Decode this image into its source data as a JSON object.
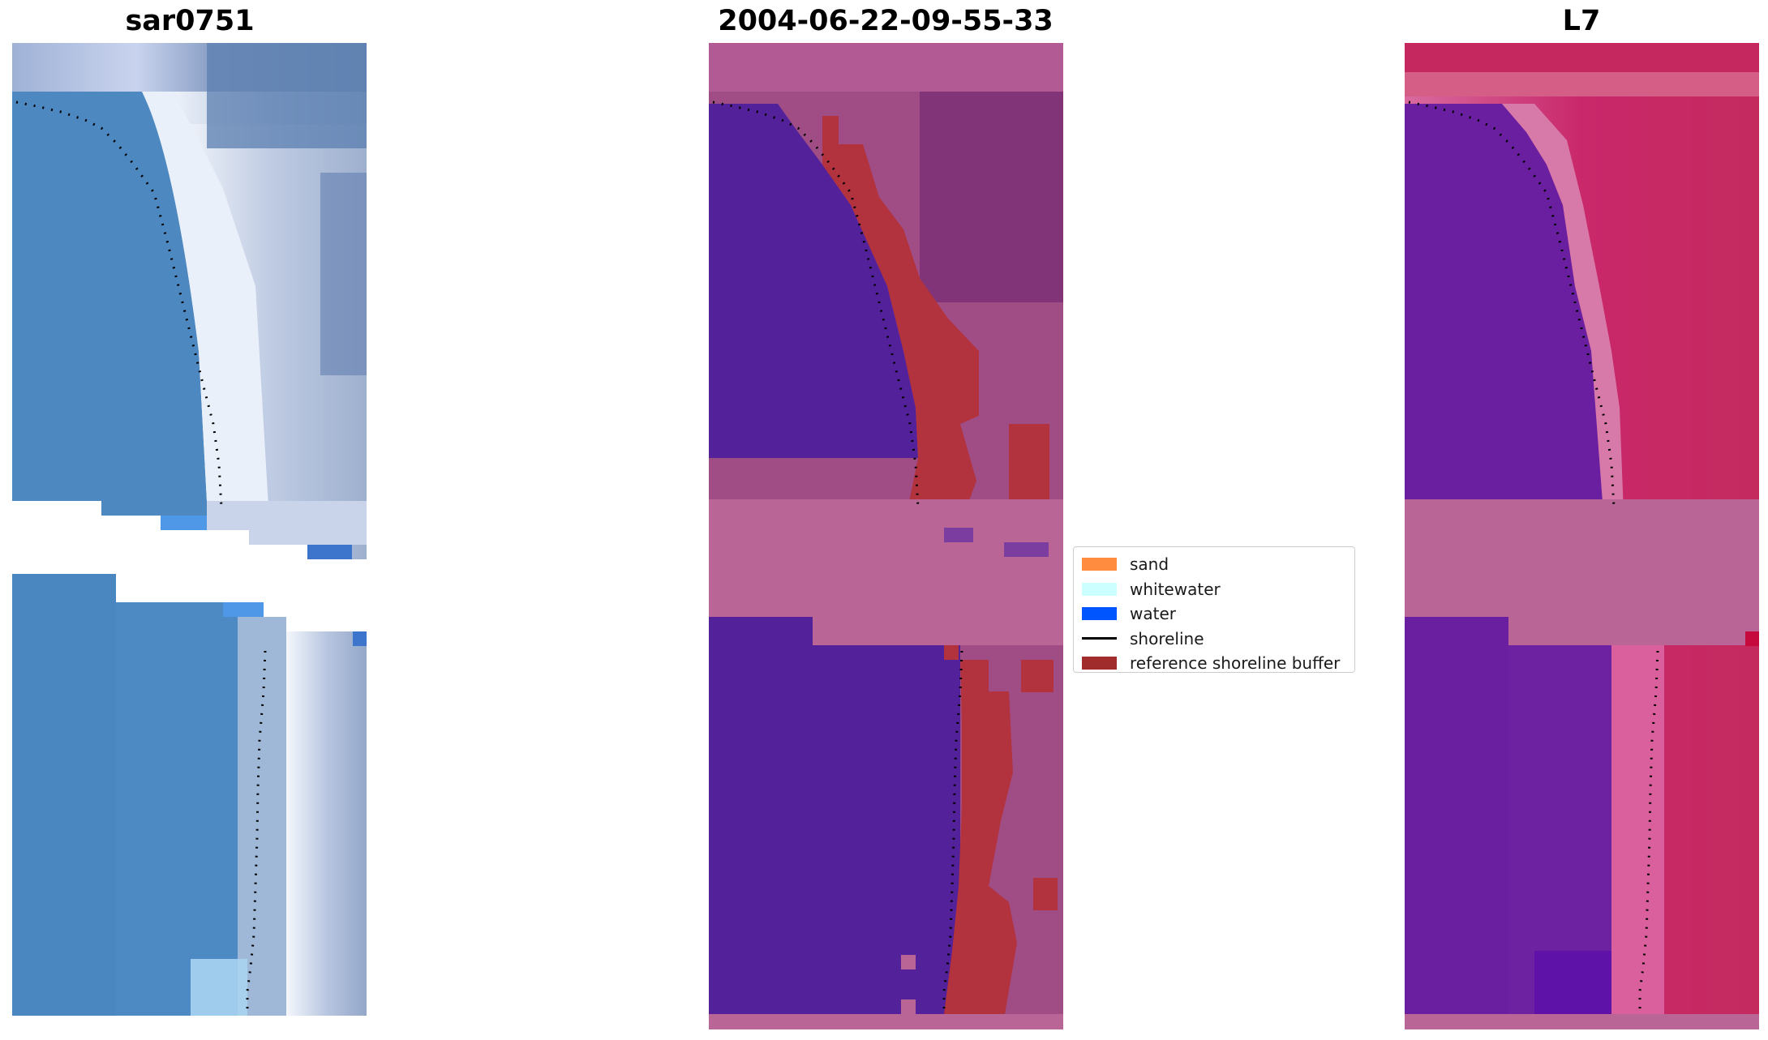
{
  "panels": {
    "left_title": "sar0751",
    "middle_title": "2004-06-22-09-55-33",
    "right_title": "L7"
  },
  "legend": {
    "items": [
      {
        "label": "sand",
        "color": "#ff8c3f",
        "kind": "patch"
      },
      {
        "label": "whitewater",
        "color": "#ccffff",
        "kind": "patch"
      },
      {
        "label": "water",
        "color": "#0055ff",
        "kind": "patch"
      },
      {
        "label": "shoreline",
        "color": "#000000",
        "kind": "line"
      },
      {
        "label": "reference shoreline buffer",
        "color": "#a02c2c",
        "kind": "patch"
      }
    ]
  },
  "colors": {
    "water_class": "#53219a",
    "buffer": "#b2323e",
    "nodata": "#b96596",
    "land_magenta": "#a04d86",
    "rgb_water": "#4a86c0",
    "rgb_foam": "#eef2f8",
    "false_water": "#6a1fa0",
    "false_land": "#c42a5e"
  }
}
